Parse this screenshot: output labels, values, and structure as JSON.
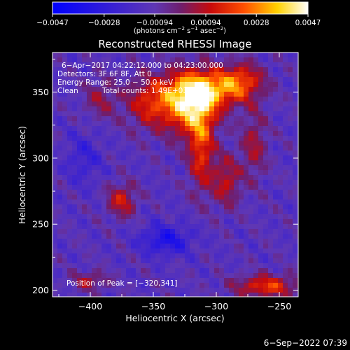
{
  "chart_data": {
    "type": "heatmap",
    "title": "Reconstructed RHESSI Image",
    "xlabel": "Heliocentric X (arcsec)",
    "ylabel": "Heliocentric Y (arcsec)",
    "xlim": [
      -430,
      -235
    ],
    "ylim": [
      195,
      380
    ],
    "x_ticks": [
      -400,
      -350,
      -300,
      -250
    ],
    "y_ticks": [
      200,
      250,
      300,
      350
    ],
    "x_tick_labels": [
      "−400",
      "−350",
      "−300",
      "−250"
    ],
    "y_tick_labels": [
      "200",
      "250",
      "300",
      "350"
    ],
    "colorbar": {
      "min": -0.0047,
      "max": 0.0047,
      "ticks": [
        -0.0047,
        -0.0028,
        -0.00094,
        0.00094,
        0.0028,
        0.0047
      ],
      "tick_labels": [
        "−0.0047",
        "−0.0028",
        "−0.00094",
        "0.00094",
        "0.0028",
        "0.0047"
      ],
      "unit_prefix": "(photons cm",
      "unit_exp1": "−2",
      "unit_mid": " s",
      "unit_exp2": "−1",
      "unit_mid2": " asec",
      "unit_exp3": "−2",
      "unit_suffix": ")"
    },
    "annotations": {
      "time_range": "6−Apr−2017 04:22:12.000 to 04:23:00.000",
      "detectors": "Detectors: 3F 6F 8F, Att 0",
      "energy": "Energy Range: 25.0 − 50.0 keV",
      "method": "Clean",
      "counts": "Total counts: 1.49E+03",
      "peak": "Position of Peak = [−320,341]"
    },
    "timestamp": "6−Sep−2022 07:39",
    "sources": [
      {
        "x": -320,
        "y": 341,
        "sx": 14,
        "sy": 16,
        "amp": 0.0047
      },
      {
        "x": -303,
        "y": 352,
        "sx": 22,
        "sy": 10,
        "amp": 0.0033
      },
      {
        "x": -352,
        "y": 342,
        "sx": 14,
        "sy": 14,
        "amp": 0.0026
      },
      {
        "x": -280,
        "y": 360,
        "sx": 12,
        "sy": 9,
        "amp": 0.0022
      },
      {
        "x": -312,
        "y": 306,
        "sx": 7,
        "sy": 22,
        "amp": 0.0028
      },
      {
        "x": -292,
        "y": 283,
        "sx": 8,
        "sy": 14,
        "amp": 0.0022
      },
      {
        "x": -270,
        "y": 310,
        "sx": 7,
        "sy": 18,
        "amp": 0.0018
      },
      {
        "x": -375,
        "y": 268,
        "sx": 8,
        "sy": 9,
        "amp": 0.0024
      },
      {
        "x": -392,
        "y": 345,
        "sx": 9,
        "sy": 11,
        "amp": 0.0015
      },
      {
        "x": -260,
        "y": 203,
        "sx": 18,
        "sy": 6,
        "amp": 0.003
      },
      {
        "x": -400,
        "y": 207,
        "sx": 10,
        "sy": 5,
        "amp": 0.0018
      },
      {
        "x": -340,
        "y": 238,
        "sx": 14,
        "sy": 8,
        "amp": -0.0022
      },
      {
        "x": -405,
        "y": 300,
        "sx": 10,
        "sy": 14,
        "amp": -0.0012
      }
    ]
  }
}
